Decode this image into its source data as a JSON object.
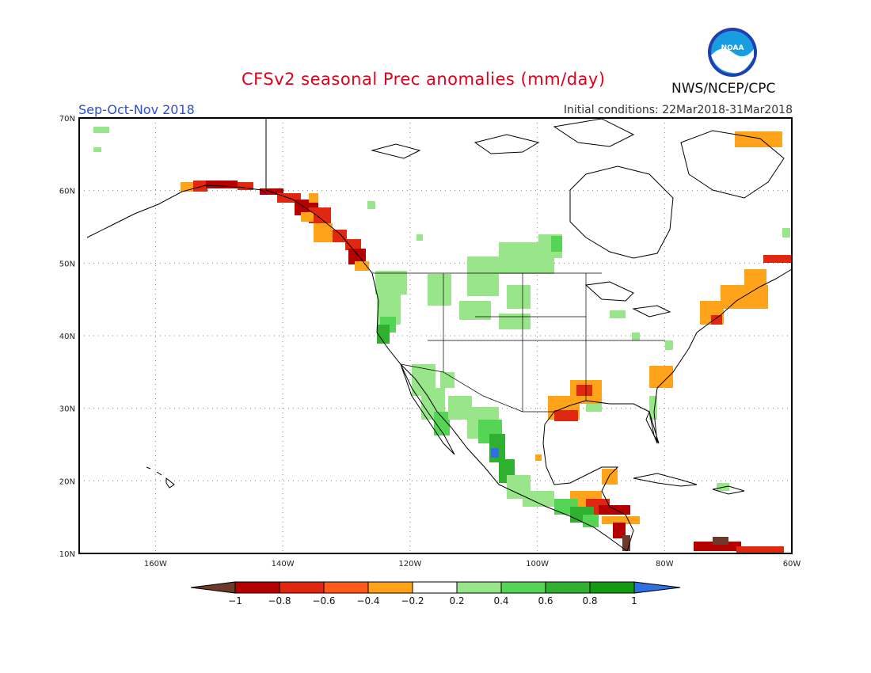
{
  "header": {
    "title": "CFSv2 seasonal Prec anomalies (mm/day)",
    "season": "Sep-Oct-Nov 2018",
    "initial_conditions": "Initial conditions: 22Mar2018-31Mar2018",
    "agency": "NWS/NCEP/CPC",
    "logo_text": "NOAA"
  },
  "map": {
    "lon_range": [
      -172,
      -60
    ],
    "lat_range": [
      10,
      70
    ],
    "lon_labels": [
      "160W",
      "140W",
      "120W",
      "100W",
      "80W",
      "60W"
    ],
    "lat_labels": [
      "10N",
      "20N",
      "30N",
      "40N",
      "50N",
      "60N",
      "70N"
    ],
    "grid": "dotted"
  },
  "legend": {
    "labels": [
      "-1",
      "-0.8",
      "-0.6",
      "-0.4",
      "-0.2",
      "0.2",
      "0.4",
      "0.6",
      "0.8",
      "1"
    ],
    "colors": [
      "#6b3a2a",
      "#b50000",
      "#e02810",
      "#ff5a1a",
      "#ffa31a",
      "#ffffff",
      "#99e68a",
      "#55d455",
      "#2fb02f",
      "#129a12",
      "#2f6fe0"
    ]
  },
  "colors": {
    "strong_dry": "#b50000",
    "dry": "#e02810",
    "mild_dry": "#ffa31a",
    "mild_wet": "#99e68a",
    "wet": "#55d455",
    "strong_wet": "#2fb02f",
    "very_wet": "#2f6fe0",
    "extreme_dry": "#6b3a2a"
  }
}
